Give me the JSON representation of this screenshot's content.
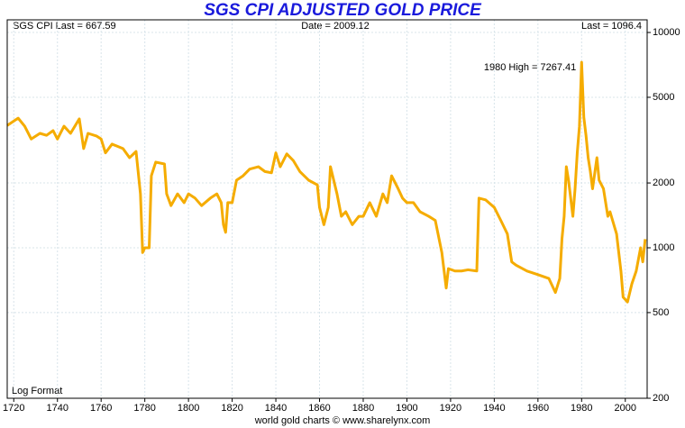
{
  "chart_data": {
    "type": "line",
    "title": "SGS CPI ADJUSTED GOLD PRICE",
    "header_left": "SGS CPI Last = 667.59",
    "header_center": "Date = 2009.12",
    "header_right": "Last = 1096.4",
    "annotation": "1980 High = 7267.41",
    "scale_note": "Log Format",
    "footer": "world gold charts © www.sharelynx.com",
    "color": "#f5ac00",
    "log_y": true,
    "grid": true,
    "xlim": [
      1717,
      2010
    ],
    "xticks": [
      1720,
      1740,
      1760,
      1780,
      1800,
      1820,
      1840,
      1860,
      1880,
      1900,
      1920,
      1940,
      1960,
      1980,
      2000
    ],
    "ylim": [
      200,
      11450
    ],
    "yticks": [
      200,
      500,
      1000,
      2000,
      5000,
      10000
    ],
    "x": [
      1717,
      1722,
      1725,
      1728,
      1732,
      1735,
      1738,
      1740,
      1743,
      1746,
      1750,
      1752,
      1754,
      1758,
      1760,
      1762,
      1765,
      1770,
      1773,
      1776,
      1778,
      1779,
      1780,
      1782,
      1783,
      1785,
      1789,
      1790,
      1792,
      1795,
      1798,
      1800,
      1803,
      1806,
      1810,
      1813,
      1815,
      1816,
      1817,
      1818,
      1820,
      1822,
      1825,
      1828,
      1832,
      1835,
      1838,
      1840,
      1842,
      1845,
      1848,
      1851,
      1855,
      1859,
      1860,
      1862,
      1864,
      1865,
      1868,
      1870,
      1872,
      1875,
      1878,
      1880,
      1883,
      1886,
      1889,
      1891,
      1893,
      1896,
      1898,
      1900,
      1903,
      1906,
      1910,
      1913,
      1916,
      1918,
      1919,
      1922,
      1925,
      1928,
      1932,
      1933,
      1936,
      1940,
      1943,
      1946,
      1948,
      1950,
      1955,
      1960,
      1965,
      1968,
      1970,
      1971,
      1972,
      1973,
      1974,
      1975,
      1976,
      1977,
      1978,
      1979,
      1980,
      1981,
      1982,
      1983,
      1984,
      1985,
      1987,
      1988,
      1990,
      1992,
      1993,
      1996,
      1998,
      1999,
      2001,
      2003,
      2005,
      2007,
      2008,
      2009.12
    ],
    "values": [
      3700,
      4000,
      3670,
      3200,
      3400,
      3330,
      3500,
      3200,
      3670,
      3400,
      3970,
      2890,
      3400,
      3300,
      3200,
      2760,
      3030,
      2890,
      2620,
      2800,
      1780,
      950,
      1000,
      1000,
      2160,
      2500,
      2450,
      1780,
      1570,
      1780,
      1620,
      1780,
      1700,
      1570,
      1700,
      1780,
      1620,
      1280,
      1180,
      1620,
      1620,
      2060,
      2160,
      2320,
      2380,
      2260,
      2230,
      2760,
      2380,
      2730,
      2540,
      2260,
      2060,
      1960,
      1540,
      1280,
      1540,
      2380,
      1780,
      1400,
      1470,
      1280,
      1400,
      1400,
      1620,
      1400,
      1780,
      1620,
      2160,
      1880,
      1700,
      1620,
      1620,
      1470,
      1400,
      1340,
      950,
      650,
      800,
      780,
      780,
      790,
      780,
      1700,
      1670,
      1540,
      1340,
      1160,
      860,
      830,
      780,
      750,
      720,
      620,
      720,
      1100,
      1400,
      2380,
      2060,
      1700,
      1400,
      1880,
      2760,
      3670,
      7267.41,
      4040,
      3330,
      2620,
      2260,
      1880,
      2620,
      2060,
      1880,
      1400,
      1470,
      1160,
      780,
      590,
      560,
      680,
      780,
      1000,
      860,
      1096.4
    ]
  }
}
